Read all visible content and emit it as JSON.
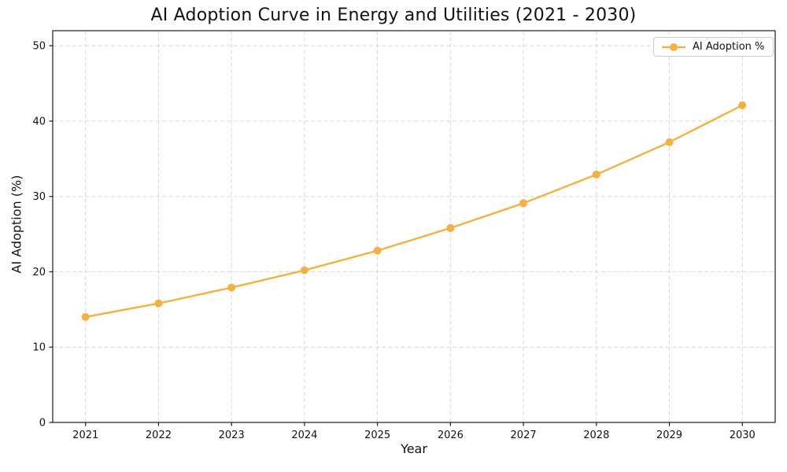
{
  "chart_data": {
    "type": "line",
    "title": "AI Adoption Curve in Energy and Utilities (2021 - 2030)",
    "xlabel": "Year",
    "ylabel": "AI Adoption (%)",
    "x": [
      2021,
      2022,
      2023,
      2024,
      2025,
      2026,
      2027,
      2028,
      2029,
      2030
    ],
    "series": [
      {
        "name": "AI Adoption %",
        "values": [
          14.0,
          15.8,
          17.9,
          20.2,
          22.8,
          25.8,
          29.1,
          32.9,
          37.2,
          42.1
        ],
        "color": "#F5B042",
        "marker": "circle",
        "line_width": 2.4
      }
    ],
    "xlim": [
      2020.55,
      2030.45
    ],
    "ylim": [
      0,
      52
    ],
    "yticks": [
      0,
      10,
      20,
      30,
      40,
      50
    ],
    "grid": true,
    "grid_style": "dashed",
    "legend": {
      "label": "AI Adoption %",
      "position": "upper right"
    }
  },
  "colors": {
    "accent_line": "#F5B042",
    "grid": "#d6d6d6",
    "spine": "#1a1a1a",
    "text": "#111111",
    "legend_border": "#cccccc",
    "background": "#ffffff"
  }
}
